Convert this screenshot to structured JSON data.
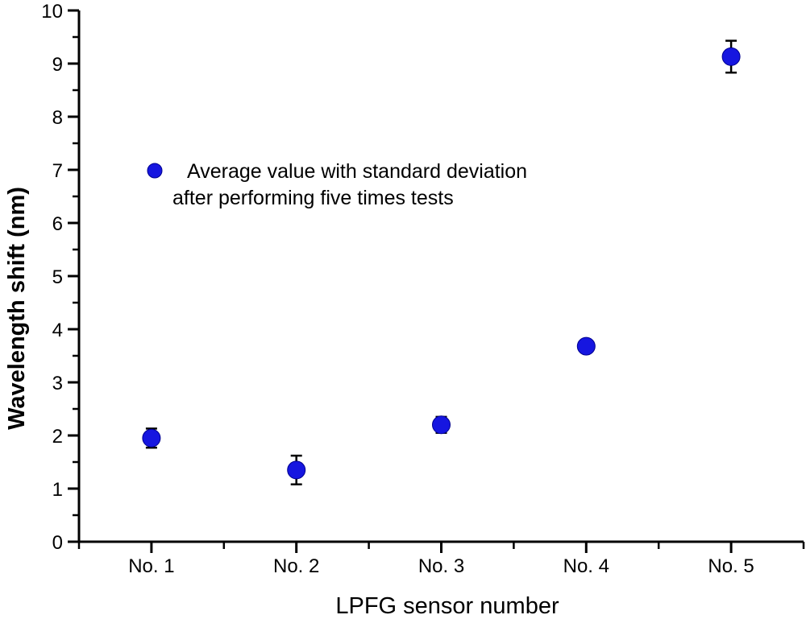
{
  "chart_data": {
    "type": "scatter",
    "title": "",
    "xlabel": "LPFG sensor number",
    "ylabel": "Wavelength shift (nm)",
    "categories": [
      "No. 1",
      "No. 2",
      "No. 3",
      "No. 4",
      "No. 5"
    ],
    "series": [
      {
        "name": "Average value with standard deviation after performing five times tests",
        "values": [
          1.95,
          1.35,
          2.2,
          3.68,
          9.13
        ],
        "errors": [
          0.18,
          0.27,
          0.15,
          0.1,
          0.3
        ]
      }
    ],
    "ylim": [
      0,
      10
    ],
    "y_major_ticks": [
      0,
      1,
      2,
      3,
      4,
      5,
      6,
      7,
      8,
      9,
      10
    ],
    "y_minor_step": 0.5,
    "grid": false,
    "legend": {
      "position": "upper-left-inside",
      "lines": [
        "Average value with standard deviation",
        "after performing five times tests"
      ]
    },
    "colors": {
      "marker": "#1616e0",
      "marker_edge": "#000090",
      "error_bar": "#000000",
      "axis": "#000000"
    }
  }
}
